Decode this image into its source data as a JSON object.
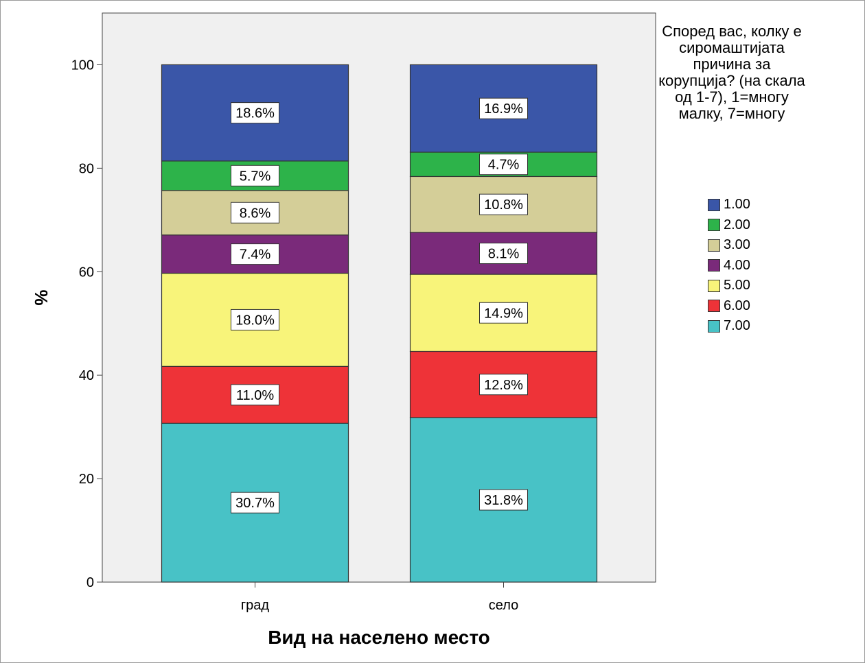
{
  "chart_data": {
    "type": "bar",
    "stacked": true,
    "xlabel": "Вид на населено место",
    "ylabel": "%",
    "ylim": [
      0,
      110
    ],
    "yticks": [
      0,
      20,
      40,
      60,
      80,
      100
    ],
    "grid": false,
    "categories": [
      "град",
      "село"
    ],
    "legend": {
      "title": "Според вас, колку е сиромаштијата причина за корупција?  (на скала од 1-7), 1=многу малку, 7=многу",
      "placement": "right"
    },
    "series": [
      {
        "name": "1.00",
        "color": "#3a56a8",
        "values": [
          18.6,
          16.9
        ],
        "labels": [
          "18.6%",
          "16.9%"
        ]
      },
      {
        "name": "2.00",
        "color": "#2db34a",
        "values": [
          5.7,
          4.7
        ],
        "labels": [
          "5.7%",
          "4.7%"
        ]
      },
      {
        "name": "3.00",
        "color": "#d4ce98",
        "values": [
          8.6,
          10.8
        ],
        "labels": [
          "8.6%",
          "10.8%"
        ]
      },
      {
        "name": "4.00",
        "color": "#7a2a7a",
        "values": [
          7.4,
          8.1
        ],
        "labels": [
          "7.4%",
          "8.1%"
        ]
      },
      {
        "name": "5.00",
        "color": "#f8f47a",
        "values": [
          18.0,
          14.9
        ],
        "labels": [
          "18.0%",
          "14.9%"
        ]
      },
      {
        "name": "6.00",
        "color": "#ee3338",
        "values": [
          11.0,
          12.8
        ],
        "labels": [
          "11.0%",
          "12.8%"
        ]
      },
      {
        "name": "7.00",
        "color": "#48c2c6",
        "values": [
          30.7,
          31.8
        ],
        "labels": [
          "30.7%",
          "31.8%"
        ]
      }
    ]
  }
}
